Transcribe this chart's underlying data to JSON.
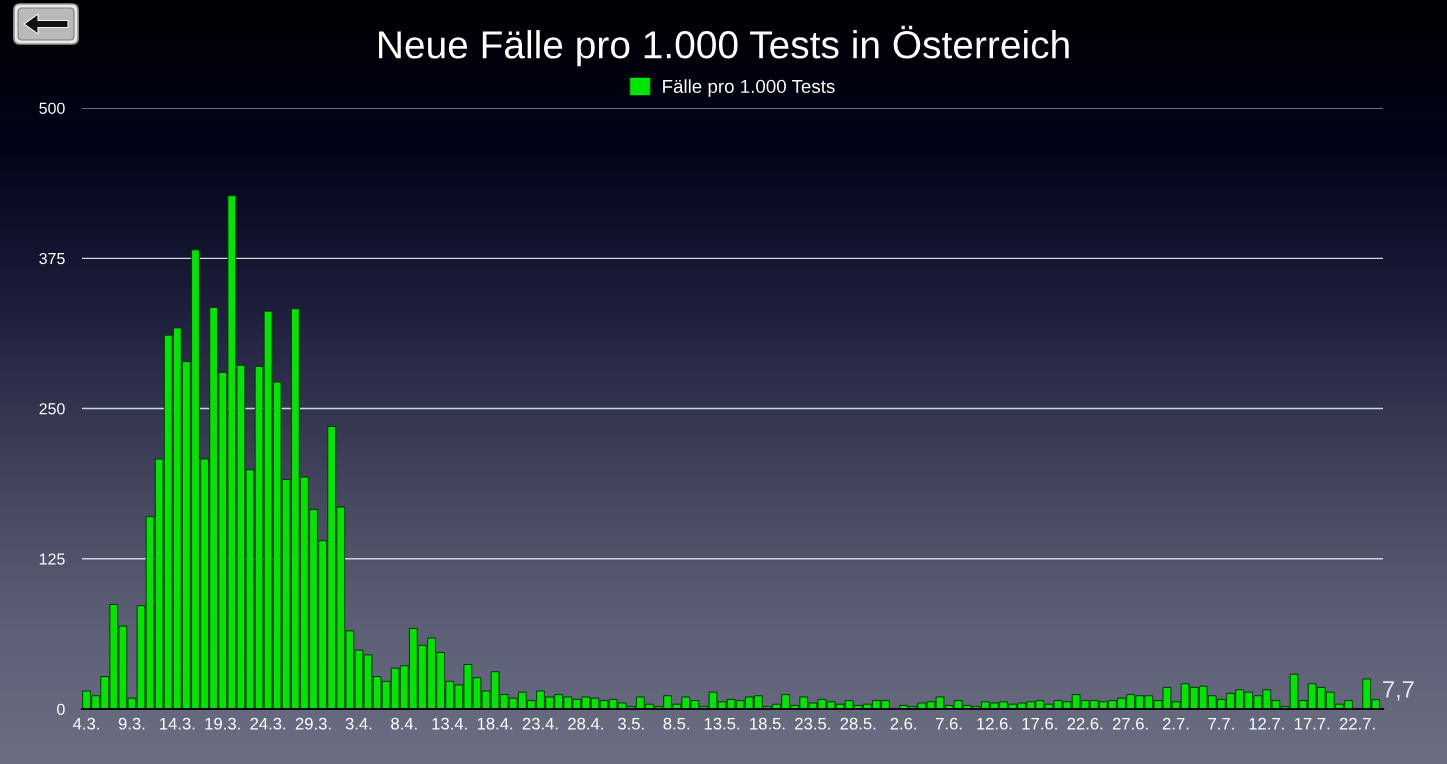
{
  "chart_data": {
    "type": "bar",
    "title": "Neue Fälle pro 1.000 Tests in Österreich",
    "categories": [
      "4.3.",
      null,
      null,
      null,
      null,
      "9.3.",
      null,
      null,
      null,
      null,
      "14.3.",
      null,
      null,
      null,
      null,
      "19.3.",
      null,
      null,
      null,
      null,
      "24.3.",
      null,
      null,
      null,
      null,
      "29.3.",
      null,
      null,
      null,
      null,
      "3.4.",
      null,
      null,
      null,
      null,
      "8.4.",
      null,
      null,
      null,
      null,
      "13.4.",
      null,
      null,
      null,
      null,
      "18.4.",
      null,
      null,
      null,
      null,
      "23.4.",
      null,
      null,
      null,
      null,
      "28.4.",
      null,
      null,
      null,
      null,
      "3.5.",
      null,
      null,
      null,
      null,
      "8.5.",
      null,
      null,
      null,
      null,
      "13.5.",
      null,
      null,
      null,
      null,
      "18.5.",
      null,
      null,
      null,
      null,
      "23.5.",
      null,
      null,
      null,
      null,
      "28.5.",
      null,
      null,
      null,
      null,
      "2.6.",
      null,
      null,
      null,
      null,
      "7.6.",
      null,
      null,
      null,
      null,
      "12.6.",
      null,
      null,
      null,
      null,
      "17.6.",
      null,
      null,
      null,
      null,
      "22.6.",
      null,
      null,
      null,
      null,
      "27.6.",
      null,
      null,
      null,
      null,
      "2.7.",
      null,
      null,
      null,
      null,
      "7.7.",
      null,
      null,
      null,
      null,
      "12.7.",
      null,
      null,
      null,
      null,
      "17.7.",
      null,
      null,
      null,
      null,
      "22.7.",
      null,
      null
    ],
    "series": [
      {
        "name": "Fälle pro 1.000 Tests",
        "color": "#00e600",
        "values": [
          15,
          11,
          27,
          87,
          69,
          9,
          86,
          160,
          208,
          311,
          317,
          289,
          382,
          208,
          334,
          280,
          427,
          286,
          199,
          285,
          331,
          272,
          191,
          333,
          193,
          166,
          140,
          235,
          168,
          65,
          49,
          45,
          27,
          23,
          34,
          36,
          67,
          53,
          59,
          47,
          23,
          20,
          37,
          26,
          15,
          31,
          12,
          9,
          14,
          7,
          15,
          10,
          12,
          10,
          8,
          10,
          9,
          7,
          8,
          5,
          2,
          10,
          4,
          2,
          11,
          4,
          10,
          7,
          2,
          14,
          6,
          8,
          7,
          10,
          11,
          2,
          4,
          12,
          3,
          10,
          5,
          8,
          6,
          4,
          7,
          3,
          4,
          7,
          7,
          null,
          3,
          2,
          5,
          6,
          10,
          3,
          7,
          3,
          2,
          6,
          5,
          6,
          4,
          5,
          6,
          7,
          4,
          7,
          6,
          12,
          7,
          7,
          6,
          7,
          9,
          12,
          11,
          11,
          7,
          18,
          6,
          21,
          18,
          19,
          11,
          8,
          13,
          16,
          14,
          11,
          16,
          7,
          2,
          29,
          7,
          21,
          18,
          14,
          4,
          7,
          null,
          25,
          7.7
        ],
        "value_labels": [
          null,
          null,
          null,
          null,
          null,
          null,
          null,
          null,
          null,
          null,
          null,
          null,
          null,
          null,
          null,
          null,
          null,
          null,
          null,
          null,
          null,
          null,
          null,
          null,
          null,
          null,
          null,
          null,
          null,
          null,
          null,
          null,
          null,
          null,
          null,
          null,
          null,
          null,
          null,
          null,
          null,
          null,
          null,
          null,
          null,
          null,
          null,
          null,
          null,
          null,
          null,
          null,
          null,
          null,
          null,
          null,
          null,
          null,
          null,
          null,
          null,
          null,
          null,
          null,
          null,
          null,
          null,
          null,
          null,
          null,
          null,
          null,
          null,
          null,
          null,
          null,
          null,
          null,
          null,
          null,
          null,
          null,
          null,
          null,
          null,
          null,
          null,
          null,
          null,
          null,
          null,
          null,
          null,
          null,
          null,
          null,
          null,
          null,
          null,
          null,
          null,
          null,
          null,
          null,
          null,
          null,
          null,
          null,
          null,
          null,
          null,
          null,
          null,
          null,
          null,
          null,
          null,
          null,
          null,
          null,
          null,
          null,
          null,
          null,
          null,
          null,
          null,
          null,
          null,
          null,
          null,
          null,
          null,
          null,
          null,
          null,
          null,
          null,
          null,
          null,
          null,
          null,
          "7,7"
        ]
      }
    ],
    "ylim": [
      0,
      500
    ],
    "yticks": [
      0,
      125,
      250,
      375,
      500
    ],
    "grid": "y",
    "legend": "top"
  }
}
